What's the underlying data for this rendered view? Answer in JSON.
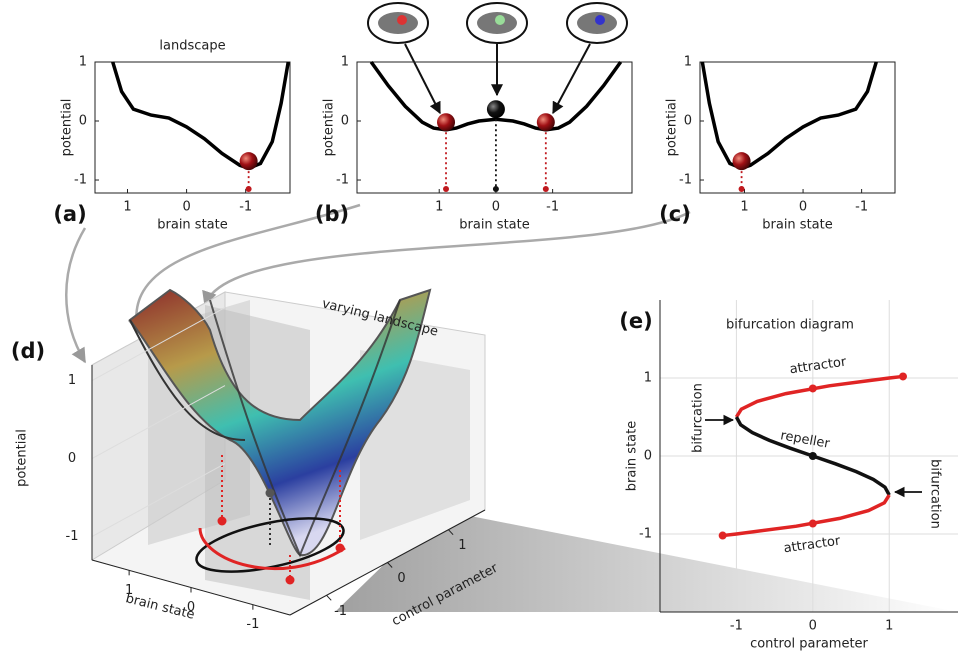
{
  "chart_data": [
    {
      "type": "line",
      "label": "(a)",
      "title": "landscape",
      "xlabel": "brain state",
      "ylabel": "potential",
      "color": "#000000",
      "x": [
        1.25,
        1.1,
        0.9,
        0.6,
        0.3,
        0,
        -0.3,
        -0.6,
        -0.9,
        -1.05,
        -1.25,
        -1.45,
        -1.6,
        -1.72
      ],
      "values": [
        1,
        0.5,
        0.2,
        0.1,
        0.05,
        -0.1,
        -0.3,
        -0.55,
        -0.75,
        -0.8,
        -0.72,
        -0.35,
        0.3,
        1
      ],
      "points": {
        "x": [
          -1.05
        ],
        "y": [
          -0.68
        ],
        "colors": [
          "#c0191e"
        ]
      },
      "xlim": [
        1.55,
        -1.75
      ],
      "ylim": [
        -1.22,
        1
      ],
      "xticks": [
        1,
        0,
        -1
      ],
      "yticks": [
        -1,
        0,
        1
      ]
    },
    {
      "type": "line",
      "label": "(b)",
      "xlabel": "brain state",
      "ylabel": "potential",
      "color": "#000000",
      "x": [
        2.2,
        1.9,
        1.6,
        1.3,
        1.1,
        0.88,
        0.7,
        0.5,
        0.3,
        0,
        -0.3,
        -0.5,
        -0.7,
        -0.88,
        -1.1,
        -1.3,
        -1.6,
        -1.9,
        -2.2
      ],
      "values": [
        1,
        0.6,
        0.25,
        -0.02,
        -0.12,
        -0.15,
        -0.12,
        -0.05,
        0,
        0.03,
        0,
        -0.05,
        -0.12,
        -0.15,
        -0.12,
        -0.02,
        0.25,
        0.6,
        1
      ],
      "points": {
        "x": [
          0.88,
          0,
          -0.88
        ],
        "y": [
          -0.02,
          0.2,
          -0.02
        ],
        "colors": [
          "#c0191e",
          "#111111",
          "#c0191e"
        ]
      },
      "xlim": [
        2.45,
        -2.4
      ],
      "ylim": [
        -1.22,
        1
      ],
      "xticks": [
        1,
        0,
        -1
      ],
      "yticks": [
        -1,
        0,
        1
      ]
    },
    {
      "type": "line",
      "label": "(c)",
      "xlabel": "brain state",
      "ylabel": "potential",
      "color": "#000000",
      "x": [
        -1.25,
        -1.1,
        -0.9,
        -0.6,
        -0.3,
        0,
        0.3,
        0.6,
        0.9,
        1.05,
        1.25,
        1.45,
        1.6,
        1.72
      ],
      "values": [
        1,
        0.5,
        0.2,
        0.1,
        0.05,
        -0.1,
        -0.3,
        -0.55,
        -0.75,
        -0.8,
        -0.72,
        -0.35,
        0.3,
        1
      ],
      "points": {
        "x": [
          1.05
        ],
        "y": [
          -0.68
        ],
        "colors": [
          "#c0191e"
        ]
      },
      "xlim": [
        1.76,
        -1.57
      ],
      "ylim": [
        -1.22,
        1
      ],
      "xticks": [
        1,
        0,
        -1
      ],
      "yticks": [
        -1,
        0,
        1
      ]
    },
    {
      "type": "surface",
      "label": "(d)",
      "title": "varying landscape",
      "xlabel": "brain state",
      "ylabel": "control parameter",
      "zlabel": "potential",
      "xlim": [
        1.6,
        -1.6
      ],
      "ylim": [
        -1.6,
        1.6
      ],
      "zlim": [
        -1.3,
        1.2
      ],
      "xticks": [
        1,
        0,
        -1
      ],
      "yticks": [
        -1,
        0,
        1
      ],
      "zticks": [
        -1,
        0,
        1
      ]
    },
    {
      "type": "bifurcation",
      "label": "(e)",
      "title": "bifurcation diagram",
      "xlabel": "control parameter",
      "ylabel": "brain state",
      "grid": true,
      "series": [
        {
          "name": "attractor",
          "color": "#e02424",
          "x": [
            -1,
            -0.936,
            -0.728,
            -0.352,
            0.216,
            1,
            1.18
          ],
          "values": [
            0.5,
            0.6,
            0.7,
            0.8,
            0.9,
            1,
            1.02
          ]
        },
        {
          "name": "repeller",
          "color": "#111111",
          "x": [
            -1,
            -0.944,
            -0.792,
            -0.568,
            -0.296,
            0,
            0.296,
            0.568,
            0.792,
            0.944,
            1
          ],
          "values": [
            0.5,
            0.4,
            0.3,
            0.2,
            0.1,
            0,
            -0.1,
            -0.2,
            -0.3,
            -0.4,
            -0.5
          ]
        },
        {
          "name": "attractor",
          "color": "#e02424",
          "x": [
            1,
            0.936,
            0.728,
            0.352,
            -0.216,
            -1,
            -1.18
          ],
          "values": [
            -0.5,
            -0.6,
            -0.7,
            -0.8,
            -0.9,
            -1,
            -1.02
          ]
        }
      ],
      "points": {
        "x": [
          1.18,
          0,
          0,
          0,
          -1.18
        ],
        "y": [
          1.02,
          0.866,
          0,
          -0.866,
          -1.02
        ],
        "colors": [
          "#e02424",
          "#e02424",
          "#111111",
          "#e02424",
          "#e02424"
        ]
      },
      "annotations": [
        "bifurcation",
        "bifurcation"
      ],
      "xlim": [
        -2,
        1.9
      ],
      "ylim": [
        -2,
        2
      ],
      "xticks": [
        -1,
        0,
        1
      ],
      "yticks": [
        -1,
        0,
        1
      ]
    }
  ]
}
